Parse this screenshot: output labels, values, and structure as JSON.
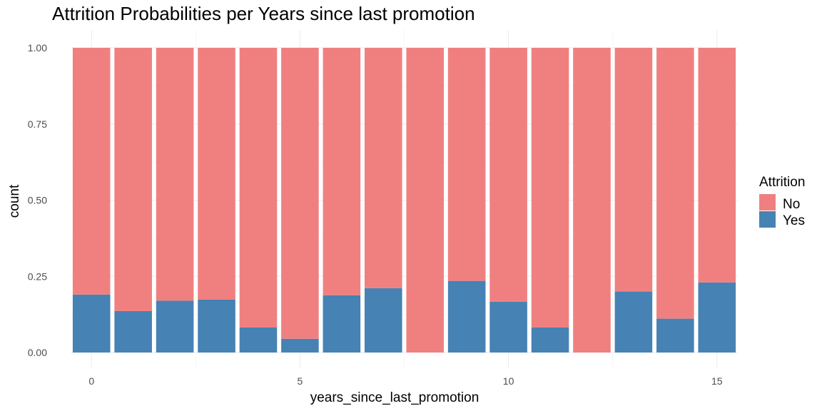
{
  "chart_data": {
    "type": "bar",
    "stacked": true,
    "normalized": true,
    "title": "Attrition Probabilities per Years since last promotion",
    "xlabel": "years_since_last_promotion",
    "ylabel": "count",
    "x": [
      0,
      1,
      2,
      3,
      4,
      5,
      6,
      7,
      8,
      9,
      10,
      11,
      12,
      13,
      14,
      15
    ],
    "xlim": [
      -0.5,
      15.5
    ],
    "ylim": [
      0,
      1
    ],
    "x_ticks": [
      0,
      5,
      10,
      15
    ],
    "y_ticks": [
      0.0,
      0.25,
      0.5,
      0.75,
      1.0
    ],
    "y_tick_labels": [
      "0.00",
      "0.25",
      "0.50",
      "0.75",
      "1.00"
    ],
    "grid": true,
    "legend": {
      "title": "Attrition",
      "position": "right",
      "entries": [
        "No",
        "Yes"
      ]
    },
    "series": [
      {
        "name": "No",
        "color": "#F08080",
        "values": [
          0.81,
          0.864,
          0.83,
          0.826,
          0.918,
          0.955,
          0.812,
          0.789,
          1.0,
          0.765,
          0.833,
          0.918,
          1.0,
          0.8,
          0.889,
          0.77
        ]
      },
      {
        "name": "Yes",
        "color": "#4682B4",
        "values": [
          0.19,
          0.136,
          0.17,
          0.174,
          0.082,
          0.045,
          0.188,
          0.211,
          0.0,
          0.235,
          0.167,
          0.082,
          0.0,
          0.2,
          0.111,
          0.23
        ]
      }
    ]
  }
}
